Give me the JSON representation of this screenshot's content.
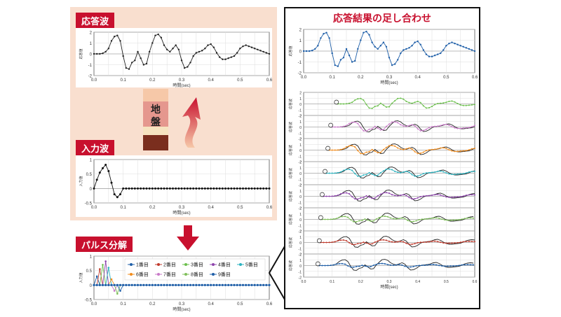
{
  "labels": {
    "response_wave": "応答波",
    "input_wave": "入力波",
    "pulse_decomp": "パルス分解",
    "combined_title": "応答結果の足し合わせ",
    "ground_top": "地",
    "ground_bottom": "盤"
  },
  "axes": {
    "xlabel": "時間(sec)",
    "ylabel_response": "応答値",
    "ylabel_input": "入力値",
    "ylabel_small": "応答波",
    "xticks": [
      "0.0",
      "0.1",
      "0.2",
      "0.3",
      "0.4",
      "0.5",
      "0.6"
    ]
  },
  "legend": [
    "1番目",
    "2番目",
    "3番目",
    "4番目",
    "5番目",
    "6番目",
    "7番目",
    "8番目",
    "9番目"
  ],
  "colors": {
    "accent_red": "#c8102e",
    "panel_bg": "#f9dfcf",
    "series": [
      "#1f5fa8",
      "#c0392b",
      "#6abf4b",
      "#8e44ad",
      "#2bb3c0",
      "#f28c1c",
      "#c879c8",
      "#7fbf5a",
      "#1f5fa8"
    ],
    "ground_layers": [
      "#f6c8a8",
      "#e5978e",
      "#f6e3c0",
      "#7a2e1e"
    ]
  },
  "chart_data": [
    {
      "type": "line",
      "title": "応答波",
      "xlabel": "時間(sec)",
      "ylabel": "応答値",
      "ylim": [
        -2,
        2
      ],
      "yticks": [
        -2,
        -1,
        0,
        1,
        2
      ],
      "xlim": [
        0,
        0.6
      ],
      "x": [
        0,
        0.01,
        0.02,
        0.03,
        0.04,
        0.05,
        0.06,
        0.07,
        0.08,
        0.09,
        0.1,
        0.11,
        0.12,
        0.13,
        0.14,
        0.15,
        0.16,
        0.17,
        0.18,
        0.19,
        0.2,
        0.21,
        0.22,
        0.23,
        0.24,
        0.25,
        0.26,
        0.27,
        0.28,
        0.29,
        0.3,
        0.31,
        0.32,
        0.33,
        0.34,
        0.35,
        0.36,
        0.37,
        0.38,
        0.39,
        0.4,
        0.41,
        0.42,
        0.43,
        0.44,
        0.45,
        0.46,
        0.47,
        0.48,
        0.49,
        0.5,
        0.51,
        0.52,
        0.53,
        0.54,
        0.55,
        0.56,
        0.57,
        0.58,
        0.59,
        0.6
      ],
      "values": [
        0,
        0,
        0,
        0.05,
        0.2,
        0.5,
        1.2,
        1.6,
        1.7,
        1.2,
        -0.2,
        -1.3,
        -1.4,
        -0.8,
        -0.6,
        0.2,
        -0.4,
        -1.0,
        -0.9,
        0.2,
        1.0,
        1.7,
        1.8,
        1.5,
        0.8,
        0.4,
        0.2,
        0.5,
        0.8,
        0.4,
        -0.6,
        -1.3,
        -1.2,
        -0.8,
        -0.2,
        0.1,
        0.2,
        0.3,
        0.5,
        0.8,
        0.9,
        0.6,
        0.1,
        -0.3,
        -0.5,
        -0.5,
        -0.4,
        -0.3,
        -0.2,
        0.1,
        0.5,
        0.7,
        0.8,
        0.7,
        0.6,
        0.5,
        0.4,
        0.3,
        0.2,
        0.1,
        0
      ]
    },
    {
      "type": "line",
      "title": "入力波",
      "xlabel": "時間(sec)",
      "ylabel": "入力値",
      "ylim": [
        -0.5,
        1.0
      ],
      "yticks": [
        -0.5,
        0,
        0.5,
        1.0
      ],
      "xlim": [
        0,
        0.6
      ],
      "x": [
        0,
        0.01,
        0.02,
        0.03,
        0.04,
        0.05,
        0.06,
        0.07,
        0.08,
        0.09,
        0.1
      ],
      "values": [
        0,
        0.3,
        0.55,
        0.7,
        0.82,
        0.6,
        0.2,
        -0.2,
        -0.3,
        -0.2,
        0
      ]
    },
    {
      "type": "line",
      "title": "パルス分解",
      "xlabel": "時間(sec)",
      "ylabel": "入力値",
      "ylim": [
        -0.5,
        1.0
      ],
      "yticks": [
        -0.5,
        0,
        0.5,
        1.0
      ],
      "xlim": [
        0,
        0.6
      ],
      "pulses": [
        0.3,
        0.55,
        0.7,
        0.82,
        0.6,
        0.2,
        -0.2,
        -0.3,
        -0.2
      ],
      "series": [
        {
          "name": "1番目"
        },
        {
          "name": "2番目"
        },
        {
          "name": "3番目"
        },
        {
          "name": "4番目"
        },
        {
          "name": "5番目"
        },
        {
          "name": "6番目"
        },
        {
          "name": "7番目"
        },
        {
          "name": "8番目"
        },
        {
          "name": "9番目"
        }
      ]
    },
    {
      "type": "line",
      "title": "応答結果の足し合わせ",
      "xlabel": "時間(sec)",
      "ylabel": "応答値",
      "ylim": [
        -2,
        2
      ],
      "yticks": [
        -2,
        -1,
        0,
        1,
        2
      ],
      "xlim": [
        0,
        0.6
      ],
      "stack_offsets": [
        0.12,
        0.1,
        0.09,
        0.08,
        0.07,
        0.065,
        0.06,
        0.055,
        0.05
      ]
    }
  ]
}
